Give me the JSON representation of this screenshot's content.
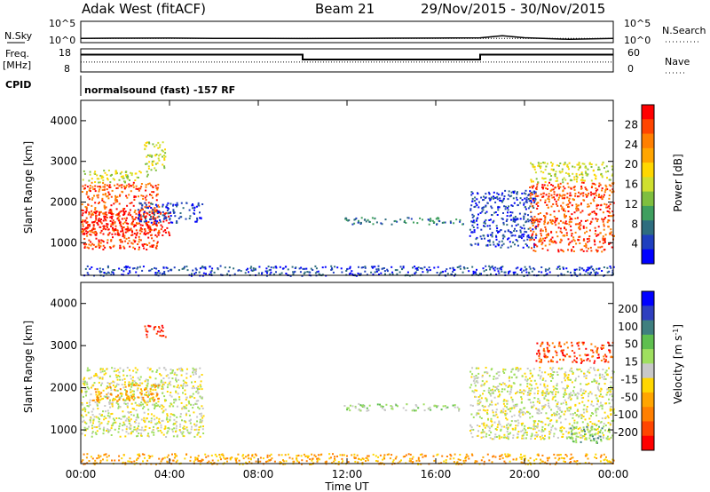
{
  "header": {
    "station": "Adak West (fitACF)",
    "beam": "Beam 21",
    "date_range": "29/Nov/2015 - 30/Nov/2015"
  },
  "strips": {
    "nsky_label": "N.Sky",
    "nsky_ticks": [
      "10^5",
      "10^0"
    ],
    "nsearch_label": "N.Search",
    "nsearch_ticks": [
      "10^5",
      "10^0"
    ],
    "freq_label_1": "Freq.",
    "freq_label_2": "[MHz]",
    "freq_ticks": [
      "18",
      "8"
    ],
    "nave_label": "Nave",
    "nave_ticks": [
      "60",
      "0"
    ],
    "cpid_label": "CPID",
    "cpid_text": "normalsound (fast) -157 RF"
  },
  "colors": {
    "power": [
      "#0000ff",
      "#1f3fbf",
      "#2e6d7f",
      "#3f9f5f",
      "#7fbf3f",
      "#cfdf2f",
      "#ffd700",
      "#ffa500",
      "#ff7f00",
      "#ff4500",
      "#ff0000"
    ],
    "velocity": [
      "#0000ff",
      "#2f3fbf",
      "#3f7f7f",
      "#5fbf4f",
      "#9fdf5f",
      "#c8c8c8",
      "#ffd700",
      "#ffa500",
      "#ff7f00",
      "#ff4500",
      "#ff0000"
    ],
    "ground_grey": "#c0c0c0"
  },
  "chart_data": [
    {
      "type": "line",
      "panel": "N.Sky / N.Search",
      "y_scale": "log",
      "ylim": [
        1,
        100000
      ],
      "series": [
        {
          "name": "N.Sky",
          "x": [
            0,
            2,
            4,
            6,
            8,
            10,
            12,
            14,
            16,
            18,
            19,
            20,
            22,
            24
          ],
          "values": [
            10,
            11,
            12,
            10,
            10,
            9,
            10,
            11,
            12,
            13,
            40,
            14,
            6,
            10
          ]
        },
        {
          "name": "N.Search",
          "x": [
            0,
            4,
            8,
            12,
            16,
            20,
            24
          ],
          "values": [
            10,
            10,
            10,
            10,
            10,
            10,
            10
          ]
        }
      ]
    },
    {
      "type": "line",
      "panel": "Freq. / Nave",
      "ylabel": "Freq. [MHz]",
      "ylim": [
        8,
        18
      ],
      "series": [
        {
          "name": "Freq.",
          "x": [
            0,
            10,
            10,
            18,
            18,
            24
          ],
          "values": [
            15.5,
            15.5,
            13.4,
            13.4,
            15.5,
            15.5
          ]
        },
        {
          "name": "Nave",
          "x": [
            0,
            24
          ],
          "values": [
            12.3,
            12.3
          ]
        }
      ]
    },
    {
      "type": "heatmap",
      "panel": "Power",
      "ylabel": "Slant Range [km]",
      "xlim": [
        0,
        24
      ],
      "ylim": [
        200,
        4500
      ],
      "yticks": [
        1000,
        2000,
        3000,
        4000
      ],
      "colorbar_label": "Power [dB]",
      "colorbar_ticks": [
        "4",
        "8",
        "12",
        "16",
        "20",
        "24",
        "28"
      ],
      "regions": [
        {
          "t0": 0.0,
          "t1": 3.5,
          "r0": 850,
          "r1": 2500,
          "level": 9
        },
        {
          "t0": 0.0,
          "t1": 4.0,
          "r0": 1200,
          "r1": 1800,
          "level": 10
        },
        {
          "t0": 2.5,
          "t1": 5.5,
          "r0": 1500,
          "r1": 2000,
          "level": 1
        },
        {
          "t0": 0.0,
          "t1": 3.0,
          "r0": 2500,
          "r1": 2800,
          "level": 5
        },
        {
          "t0": 2.8,
          "t1": 3.8,
          "r0": 2800,
          "r1": 3500,
          "level": 5
        },
        {
          "t0": 11.8,
          "t1": 17.2,
          "r0": 1470,
          "r1": 1640,
          "level": 2
        },
        {
          "t0": 17.5,
          "t1": 20.5,
          "r0": 900,
          "r1": 2300,
          "level": 1
        },
        {
          "t0": 20.2,
          "t1": 24.0,
          "r0": 800,
          "r1": 2500,
          "level": 9
        },
        {
          "t0": 20.2,
          "t1": 24.0,
          "r0": 2500,
          "r1": 3000,
          "level": 5
        },
        {
          "t0": 0.0,
          "t1": 24.0,
          "r0": 200,
          "r1": 450,
          "level": 1
        }
      ]
    },
    {
      "type": "heatmap",
      "panel": "Velocity",
      "ylabel": "Slant Range [km]",
      "xlabel": "Time UT",
      "xlim": [
        0,
        24
      ],
      "ylim": [
        200,
        4500
      ],
      "yticks": [
        1000,
        2000,
        3000,
        4000
      ],
      "xticks": [
        "00:00",
        "04:00",
        "08:00",
        "12:00",
        "16:00",
        "20:00",
        "00:00"
      ],
      "colorbar_label": "Velocity [m s-1]",
      "colorbar_ticks": [
        "200",
        "100",
        "50",
        "15",
        "-15",
        "-50",
        "-100",
        "-200"
      ],
      "regions": [
        {
          "t0": 0.0,
          "t1": 5.5,
          "r0": 850,
          "r1": 2500,
          "level": 5
        },
        {
          "t0": 0.5,
          "t1": 3.5,
          "r0": 1700,
          "r1": 2100,
          "level": 7
        },
        {
          "t0": 2.8,
          "t1": 3.8,
          "r0": 3200,
          "r1": 3500,
          "level": 10
        },
        {
          "t0": 11.8,
          "t1": 17.2,
          "r0": 1470,
          "r1": 1640,
          "level": 4
        },
        {
          "t0": 17.5,
          "t1": 24.0,
          "r0": 800,
          "r1": 2500,
          "level": 5
        },
        {
          "t0": 20.5,
          "t1": 24.0,
          "r0": 2600,
          "r1": 3100,
          "level": 9
        },
        {
          "t0": 22.0,
          "t1": 23.5,
          "r0": 700,
          "r1": 1100,
          "level": 3
        },
        {
          "t0": 0.0,
          "t1": 24.0,
          "r0": 200,
          "r1": 450,
          "level": 7
        }
      ]
    }
  ]
}
